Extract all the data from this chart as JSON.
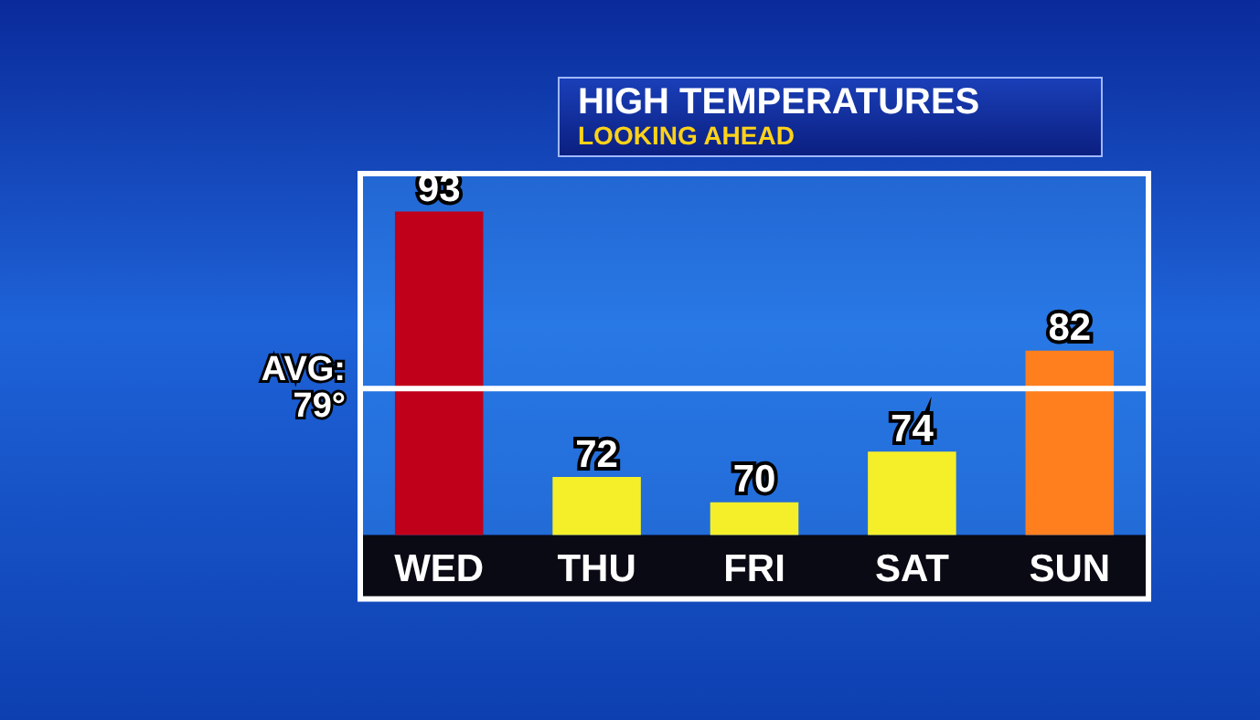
{
  "chart_data": {
    "type": "bar",
    "title": "HIGH TEMPERATURES",
    "subtitle": "LOOKING AHEAD",
    "categories": [
      "WED",
      "THU",
      "FRI",
      "SAT",
      "SUN"
    ],
    "values": [
      93,
      72,
      70,
      74,
      82
    ],
    "colors": [
      "#c0001a",
      "#f5ef2a",
      "#f5ef2a",
      "#f5ef2a",
      "#ff7f1e"
    ],
    "ylim": [
      67.4,
      96
    ],
    "data_labels": true,
    "grid": false,
    "legend": false,
    "tick_labels": "x",
    "ref_lines": [
      {
        "axis": "y",
        "value": 79,
        "label": "AVG:\n79°",
        "color": "#ffffff"
      }
    ]
  }
}
